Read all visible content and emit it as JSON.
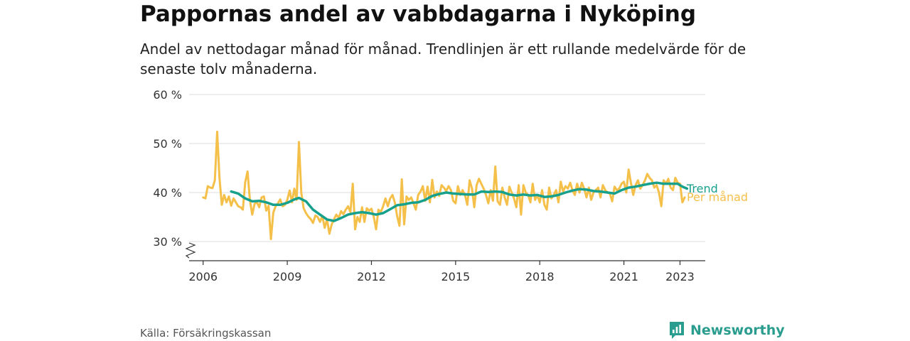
{
  "title": "Pappornas andel av vabbdagarna i Nyköping",
  "subtitle": "Andel av nettodagar månad för månad. Trendlinjen är ett rullande medelvärde för de senaste tolv månaderna.",
  "source": "Källa: Försäkringskassan",
  "brand": {
    "name": "Newsworthy",
    "logo_icon": "newsworthy-logo-icon"
  },
  "colors": {
    "monthly": "#f5c04a",
    "trend": "#17a08c",
    "grid": "#dcdcdc",
    "axis": "#333333",
    "brand": "#2a9d8f"
  },
  "chart_data": {
    "type": "line",
    "title": "Pappornas andel av vabbdagarna i Nyköping",
    "subtitle": "Andel av nettodagar månad för månad. Trendlinjen är ett rullande medelvärde för de senaste tolv månaderna.",
    "x_ticks": [
      "2006",
      "2009",
      "2012",
      "2015",
      "2018",
      "2021",
      "2023"
    ],
    "y_ticks": [
      "30 %",
      "40 %",
      "50 %",
      "60 %"
    ],
    "ylim": [
      30,
      60
    ],
    "y_axis_break": true,
    "grid": true,
    "series": [
      {
        "name": "Per månad",
        "color": "#f5c04a",
        "points": [
          [
            "2006-01",
            39.0
          ],
          [
            "2006-02",
            38.8
          ],
          [
            "2006-03",
            41.3
          ],
          [
            "2006-04",
            41.0
          ],
          [
            "2006-05",
            40.9
          ],
          [
            "2006-06",
            42.5
          ],
          [
            "2006-07",
            52.4
          ],
          [
            "2006-08",
            43.0
          ],
          [
            "2006-09",
            37.5
          ],
          [
            "2006-10",
            39.5
          ],
          [
            "2006-11",
            38.0
          ],
          [
            "2006-12",
            39.2
          ],
          [
            "2007-01",
            37.3
          ],
          [
            "2007-02",
            38.8
          ],
          [
            "2007-03",
            38.0
          ],
          [
            "2007-04",
            37.2
          ],
          [
            "2007-05",
            37.0
          ],
          [
            "2007-06",
            36.5
          ],
          [
            "2007-07",
            42.1
          ],
          [
            "2007-08",
            44.3
          ],
          [
            "2007-09",
            38.5
          ],
          [
            "2007-10",
            35.5
          ],
          [
            "2007-11",
            37.7
          ],
          [
            "2007-12",
            38.0
          ],
          [
            "2008-01",
            37.0
          ],
          [
            "2008-02",
            39.0
          ],
          [
            "2008-03",
            39.2
          ],
          [
            "2008-04",
            36.3
          ],
          [
            "2008-05",
            37.3
          ],
          [
            "2008-06",
            30.5
          ],
          [
            "2008-07",
            35.9
          ],
          [
            "2008-08",
            37.2
          ],
          [
            "2008-09",
            37.8
          ],
          [
            "2008-10",
            38.6
          ],
          [
            "2008-11",
            37.2
          ],
          [
            "2008-12",
            37.5
          ],
          [
            "2009-01",
            38.5
          ],
          [
            "2009-02",
            40.4
          ],
          [
            "2009-03",
            38.0
          ],
          [
            "2009-04",
            40.8
          ],
          [
            "2009-05",
            38.5
          ],
          [
            "2009-06",
            50.3
          ],
          [
            "2009-07",
            40.0
          ],
          [
            "2009-08",
            36.8
          ],
          [
            "2009-09",
            35.8
          ],
          [
            "2009-10",
            35.1
          ],
          [
            "2009-11",
            34.6
          ],
          [
            "2009-12",
            33.8
          ],
          [
            "2010-01",
            35.3
          ],
          [
            "2010-02",
            35.0
          ],
          [
            "2010-03",
            34.0
          ],
          [
            "2010-04",
            35.2
          ],
          [
            "2010-05",
            32.8
          ],
          [
            "2010-06",
            34.5
          ],
          [
            "2010-07",
            31.6
          ],
          [
            "2010-08",
            33.5
          ],
          [
            "2010-09",
            34.6
          ],
          [
            "2010-10",
            35.5
          ],
          [
            "2010-11",
            34.8
          ],
          [
            "2010-12",
            36.2
          ],
          [
            "2011-01",
            35.6
          ],
          [
            "2011-02",
            36.5
          ],
          [
            "2011-03",
            37.2
          ],
          [
            "2011-04",
            36.0
          ],
          [
            "2011-05",
            41.8
          ],
          [
            "2011-06",
            32.5
          ],
          [
            "2011-07",
            35.0
          ],
          [
            "2011-08",
            34.0
          ],
          [
            "2011-09",
            37.0
          ],
          [
            "2011-10",
            34.0
          ],
          [
            "2011-11",
            36.8
          ],
          [
            "2011-12",
            36.3
          ],
          [
            "2012-01",
            36.7
          ],
          [
            "2012-02",
            35.0
          ],
          [
            "2012-03",
            32.5
          ],
          [
            "2012-04",
            36.5
          ],
          [
            "2012-05",
            36.0
          ],
          [
            "2012-06",
            37.2
          ],
          [
            "2012-07",
            38.8
          ],
          [
            "2012-08",
            37.2
          ],
          [
            "2012-09",
            38.8
          ],
          [
            "2012-10",
            39.5
          ],
          [
            "2012-11",
            38.0
          ],
          [
            "2012-12",
            35.2
          ],
          [
            "2013-01",
            33.2
          ],
          [
            "2013-02",
            42.7
          ],
          [
            "2013-03",
            33.5
          ],
          [
            "2013-04",
            39.2
          ],
          [
            "2013-05",
            38.5
          ],
          [
            "2013-06",
            39.0
          ],
          [
            "2013-07",
            37.8
          ],
          [
            "2013-08",
            36.5
          ],
          [
            "2013-09",
            39.5
          ],
          [
            "2013-10",
            40.2
          ],
          [
            "2013-11",
            41.3
          ],
          [
            "2013-12",
            38.3
          ],
          [
            "2014-01",
            41.2
          ],
          [
            "2014-02",
            38.0
          ],
          [
            "2014-03",
            42.6
          ],
          [
            "2014-04",
            39.0
          ],
          [
            "2014-05",
            40.2
          ],
          [
            "2014-06",
            39.3
          ],
          [
            "2014-07",
            41.5
          ],
          [
            "2014-08",
            41.0
          ],
          [
            "2014-09",
            40.3
          ],
          [
            "2014-10",
            41.3
          ],
          [
            "2014-11",
            40.5
          ],
          [
            "2014-12",
            38.3
          ],
          [
            "2015-01",
            37.8
          ],
          [
            "2015-02",
            41.3
          ],
          [
            "2015-03",
            39.5
          ],
          [
            "2015-04",
            40.5
          ],
          [
            "2015-05",
            39.5
          ],
          [
            "2015-06",
            37.5
          ],
          [
            "2015-07",
            42.5
          ],
          [
            "2015-08",
            40.8
          ],
          [
            "2015-09",
            37.0
          ],
          [
            "2015-10",
            41.5
          ],
          [
            "2015-11",
            42.8
          ],
          [
            "2015-12",
            41.8
          ],
          [
            "2016-01",
            40.8
          ],
          [
            "2016-02",
            39.5
          ],
          [
            "2016-03",
            37.8
          ],
          [
            "2016-04",
            40.5
          ],
          [
            "2016-05",
            38.3
          ],
          [
            "2016-06",
            45.3
          ],
          [
            "2016-07",
            38.2
          ],
          [
            "2016-08",
            37.5
          ],
          [
            "2016-09",
            41.0
          ],
          [
            "2016-10",
            39.0
          ],
          [
            "2016-11",
            37.5
          ],
          [
            "2016-12",
            41.2
          ],
          [
            "2017-01",
            40.0
          ],
          [
            "2017-02",
            38.8
          ],
          [
            "2017-03",
            37.0
          ],
          [
            "2017-04",
            41.5
          ],
          [
            "2017-05",
            35.5
          ],
          [
            "2017-06",
            41.5
          ],
          [
            "2017-07",
            40.0
          ],
          [
            "2017-08",
            39.5
          ],
          [
            "2017-09",
            38.0
          ],
          [
            "2017-10",
            41.8
          ],
          [
            "2017-11",
            38.5
          ],
          [
            "2017-12",
            39.5
          ],
          [
            "2018-01",
            38.0
          ],
          [
            "2018-02",
            40.5
          ],
          [
            "2018-03",
            37.5
          ],
          [
            "2018-04",
            36.5
          ],
          [
            "2018-05",
            41.0
          ],
          [
            "2018-06",
            38.8
          ],
          [
            "2018-07",
            39.5
          ],
          [
            "2018-08",
            40.5
          ],
          [
            "2018-09",
            38.0
          ],
          [
            "2018-10",
            42.2
          ],
          [
            "2018-11",
            40.2
          ],
          [
            "2018-12",
            41.3
          ],
          [
            "2019-01",
            40.8
          ],
          [
            "2019-02",
            42.0
          ],
          [
            "2019-03",
            40.5
          ],
          [
            "2019-04",
            39.5
          ],
          [
            "2019-05",
            41.8
          ],
          [
            "2019-06",
            40.0
          ],
          [
            "2019-07",
            42.0
          ],
          [
            "2019-08",
            40.8
          ],
          [
            "2019-09",
            39.0
          ],
          [
            "2019-10",
            41.0
          ],
          [
            "2019-11",
            38.5
          ],
          [
            "2019-12",
            40.0
          ],
          [
            "2020-01",
            40.5
          ],
          [
            "2020-02",
            41.0
          ],
          [
            "2020-03",
            39.0
          ],
          [
            "2020-04",
            41.5
          ],
          [
            "2020-05",
            40.5
          ],
          [
            "2020-06",
            40.0
          ],
          [
            "2020-07",
            39.8
          ],
          [
            "2020-08",
            38.2
          ],
          [
            "2020-09",
            41.2
          ],
          [
            "2020-10",
            40.5
          ],
          [
            "2020-11",
            40.8
          ],
          [
            "2020-12",
            41.8
          ],
          [
            "2021-01",
            42.2
          ],
          [
            "2021-02",
            40.0
          ],
          [
            "2021-03",
            44.7
          ],
          [
            "2021-04",
            42.0
          ],
          [
            "2021-05",
            39.5
          ],
          [
            "2021-06",
            41.5
          ],
          [
            "2021-07",
            42.5
          ],
          [
            "2021-08",
            40.8
          ],
          [
            "2021-09",
            41.5
          ],
          [
            "2021-10",
            42.5
          ],
          [
            "2021-11",
            43.8
          ],
          [
            "2021-12",
            43.0
          ],
          [
            "2022-01",
            42.5
          ],
          [
            "2022-02",
            41.0
          ],
          [
            "2022-03",
            41.5
          ],
          [
            "2022-04",
            40.0
          ],
          [
            "2022-05",
            37.2
          ],
          [
            "2022-06",
            42.5
          ],
          [
            "2022-07",
            41.8
          ],
          [
            "2022-08",
            42.8
          ],
          [
            "2022-09",
            41.0
          ],
          [
            "2022-10",
            40.5
          ],
          [
            "2022-11",
            43.0
          ],
          [
            "2022-12",
            42.0
          ],
          [
            "2023-01",
            41.8
          ],
          [
            "2023-02",
            38.0
          ],
          [
            "2023-03",
            39.0
          ]
        ]
      },
      {
        "name": "Trend",
        "color": "#17a08c",
        "points": [
          [
            "2007-01",
            40.2
          ],
          [
            "2007-04",
            39.8
          ],
          [
            "2007-07",
            38.8
          ],
          [
            "2007-10",
            38.2
          ],
          [
            "2008-01",
            38.3
          ],
          [
            "2008-04",
            38.0
          ],
          [
            "2008-07",
            37.5
          ],
          [
            "2008-10",
            37.5
          ],
          [
            "2009-01",
            37.9
          ],
          [
            "2009-04",
            38.6
          ],
          [
            "2009-06",
            38.9
          ],
          [
            "2009-09",
            38.2
          ],
          [
            "2009-12",
            36.5
          ],
          [
            "2010-03",
            35.5
          ],
          [
            "2010-06",
            34.5
          ],
          [
            "2010-09",
            34.2
          ],
          [
            "2010-12",
            34.8
          ],
          [
            "2011-03",
            35.5
          ],
          [
            "2011-06",
            35.8
          ],
          [
            "2011-09",
            36.0
          ],
          [
            "2011-12",
            35.8
          ],
          [
            "2012-03",
            35.5
          ],
          [
            "2012-06",
            35.8
          ],
          [
            "2012-09",
            36.6
          ],
          [
            "2012-12",
            37.4
          ],
          [
            "2013-03",
            37.6
          ],
          [
            "2013-06",
            37.9
          ],
          [
            "2013-09",
            38.0
          ],
          [
            "2013-12",
            38.5
          ],
          [
            "2014-03",
            39.3
          ],
          [
            "2014-06",
            39.7
          ],
          [
            "2014-09",
            40.0
          ],
          [
            "2014-12",
            39.8
          ],
          [
            "2015-03",
            39.7
          ],
          [
            "2015-06",
            39.6
          ],
          [
            "2015-09",
            39.6
          ],
          [
            "2015-12",
            40.2
          ],
          [
            "2016-03",
            40.1
          ],
          [
            "2016-06",
            40.2
          ],
          [
            "2016-09",
            40.1
          ],
          [
            "2016-12",
            39.6
          ],
          [
            "2017-03",
            39.4
          ],
          [
            "2017-06",
            39.6
          ],
          [
            "2017-09",
            39.4
          ],
          [
            "2017-12",
            39.5
          ],
          [
            "2018-03",
            39.1
          ],
          [
            "2018-06",
            39.2
          ],
          [
            "2018-09",
            39.5
          ],
          [
            "2018-12",
            40.0
          ],
          [
            "2019-03",
            40.4
          ],
          [
            "2019-06",
            40.7
          ],
          [
            "2019-09",
            40.6
          ],
          [
            "2019-12",
            40.3
          ],
          [
            "2020-03",
            40.2
          ],
          [
            "2020-06",
            40.0
          ],
          [
            "2020-09",
            39.8
          ],
          [
            "2020-12",
            40.5
          ],
          [
            "2021-03",
            41.0
          ],
          [
            "2021-06",
            41.2
          ],
          [
            "2021-09",
            41.5
          ],
          [
            "2021-12",
            41.8
          ],
          [
            "2022-03",
            42.0
          ],
          [
            "2022-06",
            41.8
          ],
          [
            "2022-09",
            41.8
          ],
          [
            "2022-12",
            41.8
          ],
          [
            "2023-02",
            41.2
          ],
          [
            "2023-04",
            40.8
          ]
        ]
      }
    ],
    "series_labels": [
      "Trend",
      "Per månad"
    ]
  }
}
